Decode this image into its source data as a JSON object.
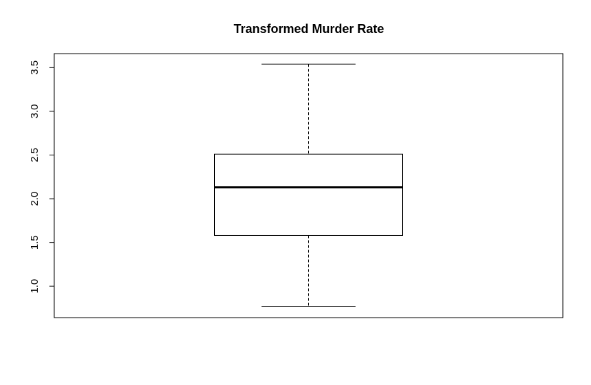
{
  "chart_data": {
    "type": "boxplot",
    "title": "Transformed Murder Rate",
    "xlabel": "",
    "ylabel": "",
    "ylim": [
      0.64,
      3.66
    ],
    "yticks": [
      1.0,
      1.5,
      2.0,
      2.5,
      3.0,
      3.5
    ],
    "ytick_labels": [
      "1.0",
      "1.5",
      "2.0",
      "2.5",
      "3.0",
      "3.5"
    ],
    "boxes": [
      {
        "min": 0.77,
        "q1": 1.58,
        "median": 2.13,
        "q3": 2.51,
        "max": 3.54
      }
    ],
    "grid": false,
    "legend": "none",
    "colors": {
      "box_fill": "#ffffff",
      "stroke": "#000000"
    }
  }
}
